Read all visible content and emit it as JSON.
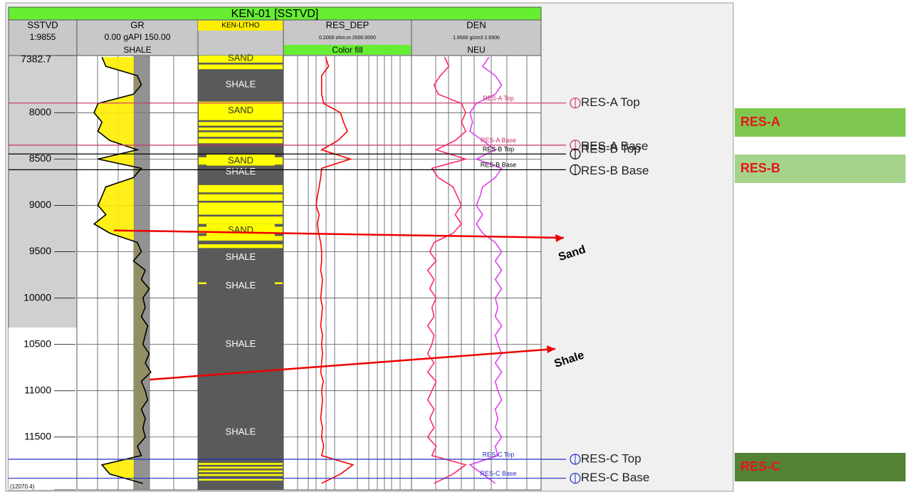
{
  "chart_data": {
    "type": "welllog",
    "title": "KEN-01 [SSTVD]",
    "tracks": [
      {
        "name": "SSTVD",
        "scale": "1:9855",
        "fill": null
      },
      {
        "name": "GR",
        "scale": "0.00 gAPI 150.00",
        "fill": "SHALE"
      },
      {
        "name": "KEN-LITHO",
        "scale": null,
        "fill": null
      },
      {
        "name": "RES_DEP",
        "scale": "0.2000 ohm.m 2000.0000",
        "fill": "Color fill"
      },
      {
        "name": "DEN",
        "scale": "1.6500 g/cm3 2.6500",
        "fill": "NEU"
      }
    ],
    "ylim": [
      7382.7,
      12070.4
    ],
    "yticks": [
      7382.7,
      8000,
      8500,
      9000,
      9500,
      10000,
      10500,
      11000,
      11500,
      {
        "value": 12070.4,
        "label": "(12070.4)"
      }
    ],
    "x": [
      7400,
      7500,
      7600,
      7700,
      7800,
      7900,
      8000,
      8100,
      8200,
      8300,
      8400,
      8500,
      8600,
      8700,
      8800,
      8900,
      9000,
      9100,
      9200,
      9300,
      9400,
      9500,
      9600,
      9700,
      9800,
      9900,
      10000,
      10100,
      10200,
      10300,
      10400,
      10500,
      10600,
      10700,
      10800,
      10900,
      11000,
      11100,
      11200,
      11300,
      11400,
      11500,
      11600,
      11700,
      11800,
      11900,
      12000
    ],
    "series": [
      {
        "name": "GR",
        "color": "#000000",
        "xlim": [
          0,
          150
        ],
        "log": false,
        "values": [
          30,
          35,
          75,
          80,
          70,
          25,
          20,
          30,
          25,
          40,
          75,
          25,
          80,
          70,
          35,
          30,
          25,
          35,
          20,
          40,
          75,
          80,
          70,
          85,
          80,
          90,
          82,
          85,
          80,
          88,
          85,
          82,
          90,
          85,
          92,
          80,
          85,
          88,
          80,
          85,
          82,
          85,
          75,
          80,
          30,
          40,
          82
        ]
      },
      {
        "name": "RES_DEP",
        "color": "#ff0000",
        "xlim": [
          0.2,
          2000
        ],
        "log": true,
        "values": [
          4,
          5,
          3,
          3,
          3,
          3.5,
          12,
          15,
          20,
          10,
          3,
          25,
          3,
          2.8,
          2.5,
          2.2,
          2,
          2.5,
          2.2,
          2.4,
          2.8,
          3,
          3,
          2.8,
          3.2,
          3,
          2.8,
          3.2,
          3,
          2.8,
          3.2,
          3,
          3.2,
          3,
          2.8,
          3.4,
          3,
          3.2,
          3,
          2.8,
          3.2,
          3,
          3.5,
          3,
          30,
          12,
          3
        ]
      },
      {
        "name": "DEN",
        "color": "#e040f0",
        "xlim": [
          1.65,
          2.65
        ],
        "log": false,
        "values": [
          2.25,
          2.2,
          2.3,
          2.35,
          2.3,
          2.15,
          2.1,
          2.12,
          2.1,
          2.2,
          2.3,
          2.15,
          2.35,
          2.3,
          2.2,
          2.18,
          2.15,
          2.2,
          2.15,
          2.2,
          2.3,
          2.35,
          2.3,
          2.35,
          2.3,
          2.35,
          2.3,
          2.32,
          2.3,
          2.35,
          2.3,
          2.32,
          2.35,
          2.3,
          2.35,
          2.3,
          2.32,
          2.35,
          2.3,
          2.32,
          2.3,
          2.35,
          2.3,
          2.32,
          2.1,
          2.2,
          2.3
        ]
      },
      {
        "name": "NEU",
        "color": "#ff2a6a",
        "xlim": [
          0.45,
          -0.15
        ],
        "log": false,
        "values": [
          0.3,
          0.28,
          0.32,
          0.35,
          0.33,
          0.22,
          0.2,
          0.22,
          0.2,
          0.25,
          0.34,
          0.2,
          0.36,
          0.33,
          0.26,
          0.24,
          0.22,
          0.25,
          0.22,
          0.26,
          0.35,
          0.37,
          0.34,
          0.38,
          0.35,
          0.37,
          0.34,
          0.36,
          0.35,
          0.38,
          0.35,
          0.36,
          0.38,
          0.35,
          0.38,
          0.34,
          0.36,
          0.38,
          0.35,
          0.37,
          0.35,
          0.38,
          0.34,
          0.36,
          0.2,
          0.26,
          0.35
        ]
      }
    ],
    "sand_intervals": [
      [
        7383,
        7460
      ],
      [
        7480,
        7530
      ],
      [
        7880,
        8080
      ],
      [
        8100,
        8140
      ],
      [
        8160,
        8190
      ],
      [
        8210,
        8260
      ],
      [
        8280,
        8330
      ],
      [
        8480,
        8560
      ],
      [
        8780,
        8860
      ],
      [
        8880,
        8950
      ],
      [
        8970,
        9100
      ],
      [
        9120,
        9200
      ],
      [
        9230,
        9300
      ],
      [
        9330,
        9380
      ],
      [
        9420,
        9460
      ],
      [
        9830,
        9850
      ],
      [
        11780,
        11800
      ],
      [
        11820,
        11840
      ],
      [
        11860,
        11880
      ],
      [
        11900,
        11920
      ],
      [
        11950,
        11970
      ]
    ],
    "sand_color": "#ffff00",
    "litho_labels": [
      {
        "text": "SAND",
        "depth": 7390
      },
      {
        "text": "SHALE",
        "depth": 7700
      },
      {
        "text": "SAND",
        "depth": 7980
      },
      {
        "text": "SAND",
        "depth": 8520
      },
      {
        "text": "SHALE",
        "depth": 8640
      },
      {
        "text": "SAND",
        "depth": 9270
      },
      {
        "text": "SHALE",
        "depth": 9560
      },
      {
        "text": "SHALE",
        "depth": 9870
      },
      {
        "text": "SHALE",
        "depth": 10500
      },
      {
        "text": "SHALE",
        "depth": 11450
      }
    ],
    "markers": [
      {
        "name": "RES-A Top",
        "depth": 7895,
        "color": "#c8306a"
      },
      {
        "name": "RES-A Base",
        "depth": 8350,
        "color": "#c8306a"
      },
      {
        "name": "RES-B Top",
        "depth": 8445,
        "color": "#000000"
      },
      {
        "name": "RES-B Base",
        "depth": 8615,
        "color": "#000000"
      },
      {
        "name": "RES-C Top",
        "depth": 11740,
        "color": "#2030c0"
      },
      {
        "name": "RES-C Base",
        "depth": 11945,
        "color": "#2030c0"
      }
    ],
    "annotations": [
      {
        "text": "Sand",
        "depth": 9270
      },
      {
        "text": "Shale",
        "depth": 10880
      }
    ],
    "zones": [
      {
        "name": "RES-A",
        "color": "#7ec850"
      },
      {
        "name": "RES-B",
        "color": "#a6d38a"
      },
      {
        "name": "RES-C",
        "color": "#548235"
      }
    ]
  }
}
